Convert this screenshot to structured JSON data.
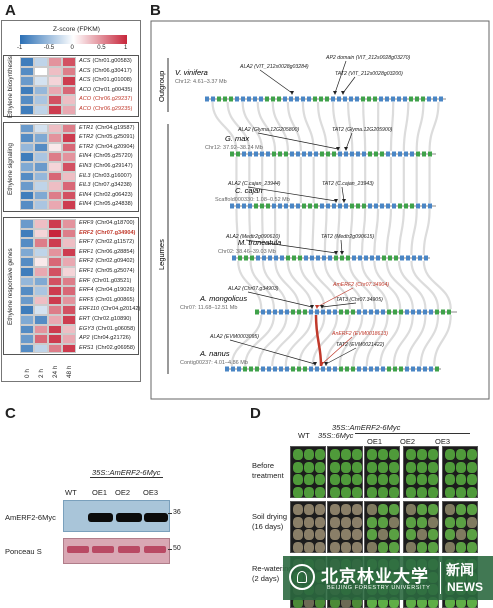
{
  "panels": {
    "a": "A",
    "b": "B",
    "c": "C",
    "d": "D"
  },
  "heatmap": {
    "scale_title": "Z-score (FPKM)",
    "scale_ticks": [
      "-1",
      "-0.5",
      "0",
      "0.5",
      "1"
    ],
    "timepoints": [
      "0 h",
      "2 h",
      "24 h",
      "48 h"
    ],
    "groups": [
      {
        "title": "Ethylene biosynthesis",
        "genes": [
          {
            "sym": "ACS",
            "id": "(Chr01.g00583)",
            "hl": false,
            "z": [
              -0.9,
              -0.3,
              0.5,
              0.8
            ]
          },
          {
            "sym": "ACS",
            "id": "(Chr06.g30417)",
            "hl": false,
            "z": [
              -0.8,
              0.0,
              0.3,
              0.6
            ]
          },
          {
            "sym": "ACS",
            "id": "(Chr01.g01008)",
            "hl": false,
            "z": [
              -0.7,
              -0.2,
              0.2,
              0.9
            ]
          },
          {
            "sym": "ACO",
            "id": "(Chr01.g00435)",
            "hl": false,
            "z": [
              -0.9,
              -0.5,
              0.4,
              0.7
            ]
          },
          {
            "sym": "ACO",
            "id": "(Chr06.g29237)",
            "hl": true,
            "z": [
              -0.8,
              -0.4,
              0.8,
              0.3
            ]
          },
          {
            "sym": "ACO",
            "id": "(Chr06.g29235)",
            "hl": true,
            "z": [
              -0.9,
              -0.3,
              0.9,
              0.4
            ]
          }
        ]
      },
      {
        "title": "Ethylene signaling",
        "genes": [
          {
            "sym": "ETR1",
            "id": "(Chr04.g19587)",
            "hl": false,
            "z": [
              -0.7,
              -0.2,
              0.3,
              0.6
            ]
          },
          {
            "sym": "ETR2",
            "id": "(Chr05.g25091)",
            "hl": false,
            "z": [
              -0.8,
              -0.6,
              0.5,
              0.9
            ]
          },
          {
            "sym": "ETR2",
            "id": "(Chr04.g20904)",
            "hl": false,
            "z": [
              -0.5,
              -0.8,
              0.1,
              0.7
            ]
          },
          {
            "sym": "EIN4",
            "id": "(Chr05.g25720)",
            "hl": false,
            "z": [
              -0.9,
              -0.4,
              0.6,
              0.5
            ]
          },
          {
            "sym": "EIN3",
            "id": "(Chr06.g29147)",
            "hl": false,
            "z": [
              -0.6,
              -0.7,
              0.2,
              0.8
            ]
          },
          {
            "sym": "EIL3",
            "id": "(Chr03.g16007)",
            "hl": false,
            "z": [
              -0.8,
              -0.5,
              0.7,
              0.3
            ]
          },
          {
            "sym": "EIL3",
            "id": "(Chr07.g34238)",
            "hl": false,
            "z": [
              -0.7,
              -0.3,
              0.3,
              0.7
            ]
          },
          {
            "sym": "EIN4",
            "id": "(Chr02.g06423)",
            "hl": false,
            "z": [
              -0.9,
              -0.6,
              0.6,
              0.8
            ]
          },
          {
            "sym": "EIN4",
            "id": "(Chr05.g24838)",
            "hl": false,
            "z": [
              -0.8,
              -0.4,
              0.4,
              0.9
            ]
          }
        ]
      },
      {
        "title": "Ethylene responsive genes",
        "genes": [
          {
            "sym": "ERF9",
            "id": "(Chr04.g18700)",
            "hl": false,
            "z": [
              -0.7,
              0.3,
              0.9,
              0.5
            ]
          },
          {
            "sym": "ERF2",
            "id": "(Chr07.g34904)",
            "hl": true,
            "bold": true,
            "z": [
              -0.9,
              0.2,
              1.0,
              0.6
            ]
          },
          {
            "sym": "ERF7",
            "id": "(Chr02.g11572)",
            "hl": false,
            "z": [
              -0.8,
              0.6,
              0.9,
              0.3
            ]
          },
          {
            "sym": "ERF1",
            "id": "(Chr06.g28854)",
            "hl": false,
            "z": [
              -0.6,
              -0.3,
              0.5,
              0.9
            ]
          },
          {
            "sym": "ERF2",
            "id": "(Chr02.g09402)",
            "hl": false,
            "z": [
              -0.8,
              0.1,
              0.7,
              0.4
            ]
          },
          {
            "sym": "ERF1",
            "id": "(Chr05.g25074)",
            "hl": false,
            "z": [
              -0.9,
              0.4,
              0.8,
              0.2
            ]
          },
          {
            "sym": "ERF",
            "id": "(Chr01.g03521)",
            "hl": false,
            "z": [
              -0.5,
              -0.6,
              0.8,
              0.6
            ]
          },
          {
            "sym": "ERF4",
            "id": "(Chr04.g19026)",
            "hl": false,
            "z": [
              -0.8,
              -0.4,
              0.9,
              0.7
            ]
          },
          {
            "sym": "ERF5",
            "id": "(Chr01.g00865)",
            "hl": false,
            "z": [
              -0.7,
              0.3,
              0.9,
              0.5
            ]
          },
          {
            "sym": "ERF110",
            "id": "(Chr04.g20142)",
            "hl": false,
            "z": [
              -0.9,
              -0.2,
              0.6,
              0.8
            ]
          },
          {
            "sym": "ERT",
            "id": "(Chr02.g10890)",
            "hl": false,
            "z": [
              -0.6,
              -0.8,
              0.4,
              0.9
            ]
          },
          {
            "sym": "EGY3",
            "id": "(Chr01.g06058)",
            "hl": false,
            "z": [
              -0.8,
              0.5,
              0.9,
              0.3
            ]
          },
          {
            "sym": "AP2",
            "id": "(Chr04.g21726)",
            "hl": false,
            "z": [
              -0.7,
              0.7,
              0.9,
              0.4
            ]
          },
          {
            "sym": "ERS1",
            "id": "(Chr02.g06958)",
            "hl": false,
            "z": [
              -0.8,
              -0.3,
              0.6,
              0.9
            ]
          }
        ]
      }
    ]
  },
  "synteny": {
    "outgroup_label": "Outgroup",
    "legumes_label": "Legumes",
    "species": [
      {
        "name": "V. vinifera",
        "coord": "Chr12: 4.61–3.37 Mb",
        "genes": [
          {
            "t": "ALA2 (VIT_212s0028g03284)",
            "red": false
          },
          {
            "t": "AP2 domain (VIT_212s0028g03270)",
            "red": false
          },
          {
            "t": "TAT2 (VIT_212s0028g03200)",
            "red": false
          }
        ]
      },
      {
        "name": "G. max",
        "coord": "Chr12: 37.92–38.24 Mb",
        "genes": [
          {
            "t": "ALA2 (Glyma.12G205800)",
            "red": false
          },
          {
            "t": "TAT2 (Glyma.12G205900)",
            "red": false
          }
        ]
      },
      {
        "name": "C. cajan",
        "coord": "Scaffold000330: 1.08–0.52 Mb",
        "genes": [
          {
            "t": "ALA2 (C.cajan_23944)",
            "red": false
          },
          {
            "t": "TAT2 (C.cajan_23943)",
            "red": false
          }
        ]
      },
      {
        "name": "M. truncatula",
        "coord": "Chr02: 38.46–39.03 Mb",
        "genes": [
          {
            "t": "ALA2 (Medtr2g090610)",
            "red": false
          },
          {
            "t": "TAT2 (Medtr2g090615)",
            "red": false
          }
        ]
      },
      {
        "name": "A. mongolicus",
        "coord": "Chr07: 11.68–12.51 Mb",
        "genes": [
          {
            "t": "ALA2 (Chr07.g34903)",
            "red": false
          },
          {
            "t": "AmERF2 (Chr07.34904)",
            "red": true
          },
          {
            "t": "TAT3 (Chr07.34905)",
            "red": false
          }
        ]
      },
      {
        "name": "A. nanus",
        "coord": "Contig00237: 4.01–4.86 Mb",
        "genes": [
          {
            "t": "ALA2 (EVM0003095)",
            "red": false
          },
          {
            "t": "AnERF2 (EVM0018613)",
            "red": true
          },
          {
            "t": "TAT2 (EVM0021422)",
            "red": false
          }
        ]
      }
    ]
  },
  "blot": {
    "construct": "35S::AmERF2-6Myc",
    "lanes": [
      "WT",
      "OE1",
      "OE2",
      "OE3"
    ],
    "row1_label": "AmERF2-6Myc",
    "row2_label": "Ponceau S",
    "marker1": "36",
    "marker2": "50"
  },
  "phenotype": {
    "col_labels": [
      "WT",
      "35S::6Myc",
      "OE1",
      "OE2",
      "OE3"
    ],
    "construct": "35S::AmERF2-6Myc",
    "rows": [
      "Before treatment",
      "Soil drying (16 days)",
      "Re-watering (2 days)"
    ]
  },
  "watermark": {
    "cn_name": "北京林业大学",
    "cn_news": "新闻",
    "en_news": "NEWS",
    "en_name": "BEIJING FORESTRY UNIVERSITY"
  },
  "colors": {
    "blue": "#2a6fb5",
    "white": "#ffffff",
    "red": "#c7263b",
    "highlight": "#c0392b",
    "bar_blue": "#4a86c5",
    "bar_green": "#3fa24a"
  }
}
